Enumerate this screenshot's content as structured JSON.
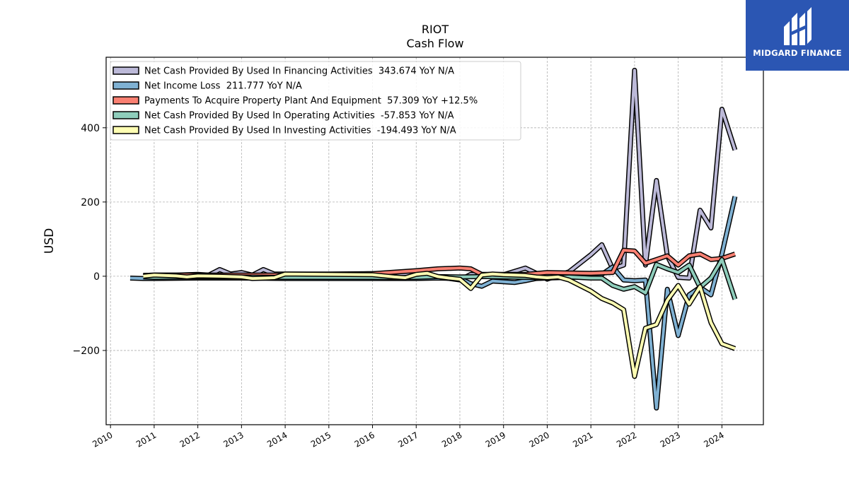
{
  "chart_data": {
    "type": "line",
    "title": "RIOT",
    "subtitle": "Cash Flow",
    "xlabel": "",
    "ylabel": "USD",
    "xlim": [
      2009.9,
      2024.95
    ],
    "ylim": [
      -400,
      590
    ],
    "x_ticks": [
      "2010",
      "2011",
      "2012",
      "2013",
      "2014",
      "2015",
      "2016",
      "2017",
      "2018",
      "2019",
      "2020",
      "2021",
      "2022",
      "2023",
      "2024"
    ],
    "y_ticks": [
      -200,
      0,
      200,
      400
    ],
    "y_tick_labels": [
      "−200",
      "0",
      "200",
      "400"
    ],
    "grid": true,
    "legend_position": "top-left",
    "series": [
      {
        "name": "Net Cash Provided By Used In Financing Activities  343.674 YoY N/A",
        "color": "#bcb9d8",
        "points": [
          [
            2010.75,
            2
          ],
          [
            2011.0,
            3
          ],
          [
            2011.5,
            3
          ],
          [
            2011.75,
            4
          ],
          [
            2012.0,
            5
          ],
          [
            2012.25,
            3
          ],
          [
            2012.5,
            18
          ],
          [
            2012.75,
            6
          ],
          [
            2013.0,
            10
          ],
          [
            2013.25,
            3
          ],
          [
            2013.5,
            18
          ],
          [
            2013.75,
            6
          ],
          [
            2014.0,
            6
          ],
          [
            2015.0,
            6
          ],
          [
            2016.0,
            7
          ],
          [
            2016.5,
            5
          ],
          [
            2017.0,
            7
          ],
          [
            2017.5,
            -2
          ],
          [
            2018.0,
            -10
          ],
          [
            2018.25,
            5
          ],
          [
            2018.75,
            2
          ],
          [
            2019.0,
            4
          ],
          [
            2019.5,
            22
          ],
          [
            2019.75,
            8
          ],
          [
            2020.0,
            -8
          ],
          [
            2020.25,
            2
          ],
          [
            2020.5,
            12
          ],
          [
            2021.0,
            58
          ],
          [
            2021.25,
            85
          ],
          [
            2021.5,
            20
          ],
          [
            2021.75,
            30
          ],
          [
            2022.0,
            555
          ],
          [
            2022.25,
            30
          ],
          [
            2022.5,
            258
          ],
          [
            2022.75,
            55
          ],
          [
            2023.0,
            -3
          ],
          [
            2023.25,
            -5
          ],
          [
            2023.5,
            178
          ],
          [
            2023.75,
            130
          ],
          [
            2024.0,
            450
          ],
          [
            2024.3,
            340
          ]
        ]
      },
      {
        "name": "Net Income Loss  211.777 YoY N/A",
        "color": "#7fb1d3",
        "points": [
          [
            2010.45,
            -5
          ],
          [
            2010.75,
            -6
          ],
          [
            2011.0,
            -6
          ],
          [
            2012.0,
            -5
          ],
          [
            2013.0,
            -5
          ],
          [
            2014.0,
            -6
          ],
          [
            2015.0,
            -6
          ],
          [
            2016.0,
            -6
          ],
          [
            2017.0,
            -6
          ],
          [
            2017.5,
            -5
          ],
          [
            2018.0,
            -6
          ],
          [
            2018.25,
            -20
          ],
          [
            2018.5,
            -27
          ],
          [
            2018.75,
            -13
          ],
          [
            2019.25,
            -17
          ],
          [
            2019.5,
            -12
          ],
          [
            2019.75,
            -6
          ],
          [
            2020.0,
            -5
          ],
          [
            2020.25,
            -4
          ],
          [
            2020.5,
            -3
          ],
          [
            2021.0,
            -2
          ],
          [
            2021.25,
            5
          ],
          [
            2021.5,
            25
          ],
          [
            2021.75,
            -10
          ],
          [
            2022.0,
            -12
          ],
          [
            2022.25,
            -10
          ],
          [
            2022.5,
            -355
          ],
          [
            2022.75,
            -35
          ],
          [
            2023.0,
            -160
          ],
          [
            2023.25,
            -50
          ],
          [
            2023.5,
            -30
          ],
          [
            2023.75,
            -50
          ],
          [
            2024.0,
            60
          ],
          [
            2024.3,
            215
          ]
        ]
      },
      {
        "name": "Payments To Acquire Property Plant And Equipment  57.309 YoY +12.5%",
        "color": "#fa8072",
        "points": [
          [
            2010.75,
            2
          ],
          [
            2011.0,
            3
          ],
          [
            2012.0,
            3
          ],
          [
            2013.0,
            3
          ],
          [
            2014.0,
            3
          ],
          [
            2015.0,
            4
          ],
          [
            2016.0,
            7
          ],
          [
            2017.0,
            15
          ],
          [
            2017.5,
            20
          ],
          [
            2018.0,
            22
          ],
          [
            2018.25,
            20
          ],
          [
            2018.5,
            5
          ],
          [
            2019.0,
            5
          ],
          [
            2019.5,
            5
          ],
          [
            2020.0,
            10
          ],
          [
            2020.5,
            9
          ],
          [
            2021.0,
            8
          ],
          [
            2021.5,
            10
          ],
          [
            2021.75,
            70
          ],
          [
            2022.0,
            68
          ],
          [
            2022.25,
            35
          ],
          [
            2022.5,
            45
          ],
          [
            2022.75,
            55
          ],
          [
            2023.0,
            30
          ],
          [
            2023.25,
            55
          ],
          [
            2023.5,
            60
          ],
          [
            2023.75,
            45
          ],
          [
            2024.0,
            48
          ],
          [
            2024.3,
            60
          ]
        ]
      },
      {
        "name": "Net Cash Provided By Used In Operating Activities  -57.853 YoY N/A",
        "color": "#8ecdbb",
        "points": [
          [
            2010.75,
            -2
          ],
          [
            2011.0,
            -3
          ],
          [
            2012.0,
            -2
          ],
          [
            2013.0,
            -2
          ],
          [
            2014.0,
            -3
          ],
          [
            2015.0,
            -3
          ],
          [
            2016.0,
            -3
          ],
          [
            2016.5,
            -4
          ],
          [
            2017.0,
            -3
          ],
          [
            2017.5,
            -1
          ],
          [
            2018.0,
            -2
          ],
          [
            2018.5,
            -1
          ],
          [
            2019.0,
            -2
          ],
          [
            2019.5,
            -3
          ],
          [
            2020.0,
            -5
          ],
          [
            2020.25,
            -3
          ],
          [
            2020.5,
            -2
          ],
          [
            2021.0,
            -5
          ],
          [
            2021.25,
            -5
          ],
          [
            2021.5,
            -25
          ],
          [
            2021.75,
            -35
          ],
          [
            2022.0,
            -28
          ],
          [
            2022.25,
            -45
          ],
          [
            2022.5,
            32
          ],
          [
            2022.75,
            20
          ],
          [
            2023.0,
            10
          ],
          [
            2023.25,
            30
          ],
          [
            2023.5,
            -30
          ],
          [
            2023.75,
            -5
          ],
          [
            2024.0,
            45
          ],
          [
            2024.3,
            -62
          ]
        ]
      },
      {
        "name": "Net Cash Provided By Used In Investing Activities  -194.493 YoY N/A",
        "color": "#ffffb3",
        "points": [
          [
            2010.75,
            0
          ],
          [
            2011.0,
            3
          ],
          [
            2011.5,
            1
          ],
          [
            2011.75,
            -2
          ],
          [
            2012.0,
            1
          ],
          [
            2012.5,
            0
          ],
          [
            2013.0,
            -2
          ],
          [
            2013.25,
            -6
          ],
          [
            2013.75,
            -4
          ],
          [
            2014.0,
            6
          ],
          [
            2015.0,
            5
          ],
          [
            2016.0,
            4
          ],
          [
            2016.5,
            -2
          ],
          [
            2016.75,
            -4
          ],
          [
            2017.0,
            5
          ],
          [
            2017.25,
            8
          ],
          [
            2017.5,
            -1
          ],
          [
            2017.75,
            -5
          ],
          [
            2018.0,
            -8
          ],
          [
            2018.25,
            -33
          ],
          [
            2018.5,
            3
          ],
          [
            2018.75,
            6
          ],
          [
            2019.0,
            4
          ],
          [
            2019.5,
            2
          ],
          [
            2019.75,
            -2
          ],
          [
            2020.0,
            -4
          ],
          [
            2020.25,
            -2
          ],
          [
            2020.5,
            -10
          ],
          [
            2021.0,
            -40
          ],
          [
            2021.25,
            -60
          ],
          [
            2021.5,
            -72
          ],
          [
            2021.75,
            -90
          ],
          [
            2022.0,
            -270
          ],
          [
            2022.25,
            -140
          ],
          [
            2022.5,
            -130
          ],
          [
            2022.75,
            -65
          ],
          [
            2023.0,
            -25
          ],
          [
            2023.25,
            -75
          ],
          [
            2023.5,
            -28
          ],
          [
            2023.75,
            -125
          ],
          [
            2024.0,
            -182
          ],
          [
            2024.3,
            -195
          ]
        ]
      }
    ]
  },
  "logo": {
    "text": "MIDGARD FINANCE",
    "color": "#2b56b3"
  }
}
